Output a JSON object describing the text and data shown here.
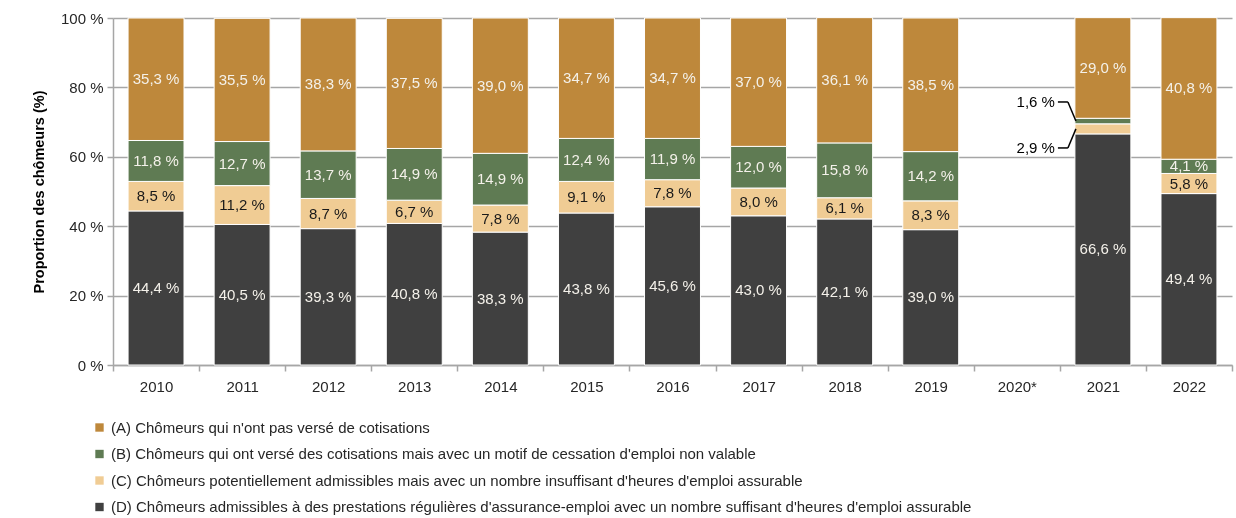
{
  "chart_data": {
    "type": "bar",
    "stacked": true,
    "ylabel": "Proportion des chômeurs (%)",
    "categories": [
      "2010",
      "2011",
      "2012",
      "2013",
      "2014",
      "2015",
      "2016",
      "2017",
      "2018",
      "2019",
      "2020*",
      "2021",
      "2022"
    ],
    "series": [
      {
        "name": "(D) Chômeurs admissibles à des prestations régulières d'assurance-emploi avec un nombre suffisant d'heures d'emploi assurable",
        "color": "#404040",
        "values": [
          44.4,
          40.5,
          39.3,
          40.8,
          38.3,
          43.8,
          45.6,
          43.0,
          42.1,
          39.0,
          null,
          66.6,
          49.4
        ],
        "value_labels": [
          "44,4 %",
          "40,5 %",
          "39,3 %",
          "40,8 %",
          "38,3 %",
          "43,8 %",
          "45,6 %",
          "43,0 %",
          "42,1 %",
          "39,0 %",
          null,
          "66,6 %",
          "49,4 %"
        ]
      },
      {
        "name": "(C) Chômeurs potentiellement admissibles mais avec un nombre insuffisant d'heures d'emploi assurable",
        "color": "#f0cc94",
        "values": [
          8.5,
          11.2,
          8.7,
          6.7,
          7.8,
          9.1,
          7.8,
          8.0,
          6.1,
          8.3,
          null,
          2.9,
          5.8
        ],
        "value_labels": [
          "8,5 %",
          "11,2 %",
          "8,7 %",
          "6,7 %",
          "7,8 %",
          "9,1 %",
          "7,8 %",
          "8,0 %",
          "6,1 %",
          "8,3 %",
          null,
          "2,9 %",
          "5,8 %"
        ]
      },
      {
        "name": "(B) Chômeurs qui ont versé des cotisations mais avec un motif de cessation d'emploi non valable",
        "color": "#5f7b53",
        "values": [
          11.8,
          12.7,
          13.7,
          14.9,
          14.9,
          12.4,
          11.9,
          12.0,
          15.8,
          14.2,
          null,
          1.6,
          4.1
        ],
        "value_labels": [
          "11,8 %",
          "12,7 %",
          "13,7 %",
          "14,9 %",
          "14,9 %",
          "12,4 %",
          "11,9 %",
          "12,0 %",
          "15,8 %",
          "14,2 %",
          null,
          "1,6 %",
          "4,1 %"
        ]
      },
      {
        "name": "(A) Chômeurs qui n'ont pas versé de cotisations",
        "color": "#be883b",
        "values": [
          35.3,
          35.5,
          38.3,
          37.5,
          39.0,
          34.7,
          34.7,
          37.0,
          36.1,
          38.5,
          null,
          29.0,
          40.8
        ],
        "value_labels": [
          "35,3 %",
          "35,5 %",
          "38,3 %",
          "37,5 %",
          "39,0 %",
          "34,7 %",
          "34,7 %",
          "37,0 %",
          "36,1 %",
          "38,5 %",
          null,
          "29,0 %",
          "40,8 %"
        ]
      }
    ],
    "ylim": [
      0,
      100
    ],
    "yticks": [
      {
        "value": 0,
        "label": "0 %"
      },
      {
        "value": 20,
        "label": "20 %"
      },
      {
        "value": 40,
        "label": "40 %"
      },
      {
        "value": 60,
        "label": "60 %"
      },
      {
        "value": 80,
        "label": "80 %"
      },
      {
        "value": 100,
        "label": "100 %"
      }
    ],
    "grid": "y",
    "legend": "bottom"
  }
}
